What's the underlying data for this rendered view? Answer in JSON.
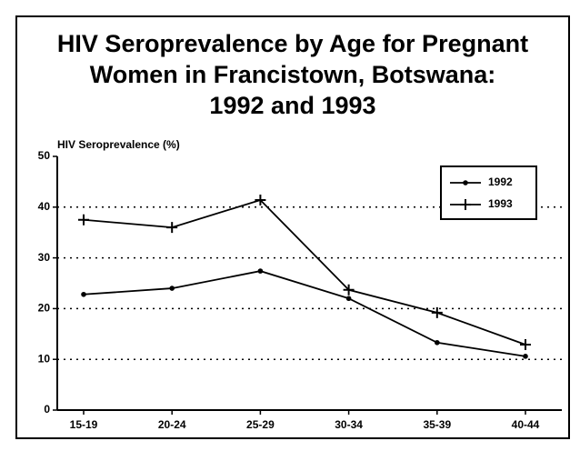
{
  "chart_data": {
    "type": "line",
    "title": [
      "HIV Seroprevalence by Age for Pregnant",
      "Women in Francistown, Botswana:",
      "1992 and 1993"
    ],
    "y_label": "HIV Seroprevalence (%)",
    "categories": [
      "15-19",
      "20-24",
      "25-29",
      "30-34",
      "35-39",
      "40-44"
    ],
    "series": [
      {
        "name": "1992",
        "color": "#000000",
        "marker": "circle",
        "values": [
          22.8,
          24,
          27.4,
          22,
          13.3,
          10.6
        ]
      },
      {
        "name": "1993",
        "color": "#000000",
        "marker": "plus",
        "values": [
          37.5,
          36,
          41.4,
          23.7,
          19.2,
          12.9
        ]
      }
    ],
    "ylim": [
      0,
      50
    ],
    "yticks": [
      0,
      10,
      20,
      30,
      40,
      50
    ],
    "grid": true,
    "legend": "upper right"
  }
}
